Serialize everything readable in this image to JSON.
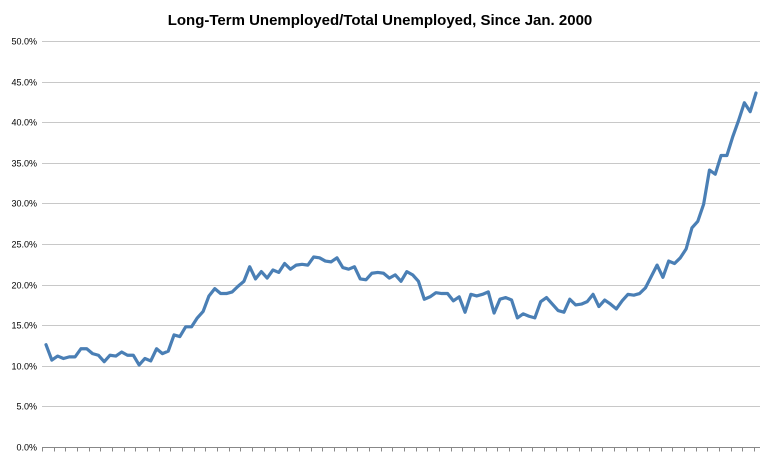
{
  "chart_data": {
    "type": "line",
    "title": "Long-Term Unemployed/Total Unemployed, Since Jan. 2000",
    "xlabel": "",
    "ylabel": "",
    "ylim": [
      0,
      50
    ],
    "yticks": [
      0,
      5,
      10,
      15,
      20,
      25,
      30,
      35,
      40,
      45,
      50
    ],
    "ytick_labels": [
      "0.0%",
      "5.0%",
      "10.0%",
      "15.0%",
      "20.0%",
      "25.0%",
      "30.0%",
      "35.0%",
      "40.0%",
      "45.0%",
      "50.0%"
    ],
    "grid": true,
    "legend": "none",
    "color": "#4a7fb5",
    "x_start": "2000-01",
    "x_frequency": "monthly",
    "series": [
      {
        "values": [
          12.6,
          10.7,
          11.2,
          10.9,
          11.1,
          11.1,
          12.1,
          12.1,
          11.5,
          11.3,
          10.5,
          11.3,
          11.2,
          11.7,
          11.3,
          11.3,
          10.1,
          10.9,
          10.6,
          12.1,
          11.5,
          11.8,
          13.8,
          13.6,
          14.8,
          14.8,
          15.9,
          16.7,
          18.6,
          19.5,
          18.9,
          18.9,
          19.1,
          19.8,
          20.4,
          22.2,
          20.7,
          21.6,
          20.8,
          21.8,
          21.5,
          22.6,
          21.9,
          22.4,
          22.5,
          22.4,
          23.4,
          23.3,
          22.9,
          22.8,
          23.3,
          22.1,
          21.9,
          22.2,
          20.7,
          20.6,
          21.4,
          21.5,
          21.4,
          20.8,
          21.2,
          20.4,
          21.6,
          21.2,
          20.4,
          18.2,
          18.5,
          19.0,
          18.9,
          18.9,
          18.0,
          18.5,
          16.6,
          18.8,
          18.6,
          18.8,
          19.1,
          16.5,
          18.2,
          18.4,
          18.1,
          15.9,
          16.4,
          16.1,
          15.9,
          17.9,
          18.4,
          17.6,
          16.8,
          16.6,
          18.2,
          17.5,
          17.6,
          17.9,
          18.8,
          17.3,
          18.1,
          17.6,
          17.0,
          18.0,
          18.8,
          18.7,
          18.9,
          19.6,
          21.0,
          22.4,
          20.9,
          22.9,
          22.6,
          23.3,
          24.4,
          27.0,
          27.8,
          29.9,
          34.1,
          33.6,
          35.9,
          35.9,
          38.2,
          40.2,
          42.4,
          41.3,
          43.6
        ]
      }
    ]
  }
}
